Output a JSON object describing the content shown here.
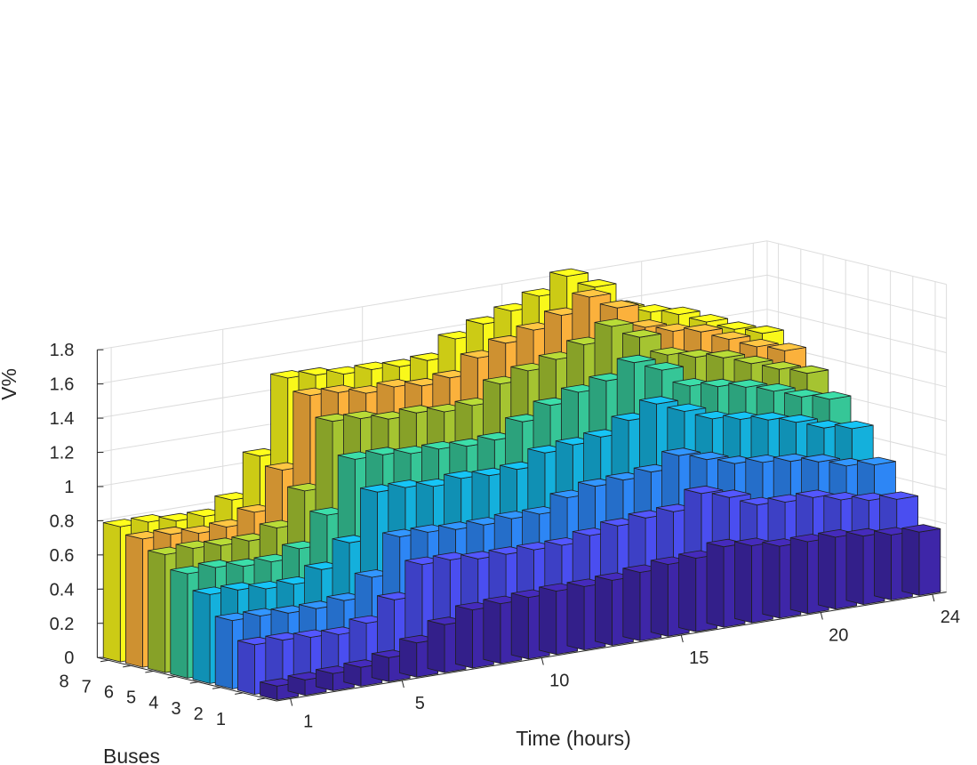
{
  "chart_data": {
    "type": "bar3",
    "title": "",
    "xlabel": "Time (hours)",
    "ylabel": "Buses",
    "zlabel": "V%",
    "zlim": [
      0,
      1.8
    ],
    "z_ticks": [
      "0",
      "0.2",
      "0.4",
      "0.6",
      "0.8",
      "1",
      "1.2",
      "1.4",
      "1.6",
      "1.8"
    ],
    "x_ticks": [
      "1",
      "5",
      "10",
      "15",
      "20",
      "24"
    ],
    "y_ticks": [
      "1",
      "2",
      "3",
      "4",
      "5",
      "6",
      "7",
      "8"
    ],
    "grid": true,
    "categories": [
      1,
      2,
      3,
      4,
      5,
      6,
      7,
      8,
      9,
      10,
      11,
      12,
      13,
      14,
      15,
      16,
      17,
      18,
      19,
      20,
      21,
      22,
      23,
      24
    ],
    "series": [
      {
        "name": "Bus 1",
        "color": "#3e26a8",
        "values": [
          0.08,
          0.09,
          0.1,
          0.11,
          0.14,
          0.2,
          0.28,
          0.34,
          0.35,
          0.36,
          0.37,
          0.37,
          0.38,
          0.4,
          0.42,
          0.43,
          0.47,
          0.45,
          0.42,
          0.42,
          0.42,
          0.4,
          0.38,
          0.37
        ]
      },
      {
        "name": "Bus 2",
        "color": "#4a4ef0",
        "values": [
          0.29,
          0.29,
          0.28,
          0.27,
          0.31,
          0.42,
          0.6,
          0.6,
          0.58,
          0.58,
          0.58,
          0.58,
          0.61,
          0.64,
          0.66,
          0.67,
          0.75,
          0.7,
          0.63,
          0.62,
          0.62,
          0.58,
          0.55,
          0.53
        ]
      },
      {
        "name": "Bus 3",
        "color": "#2d86f5",
        "values": [
          0.4,
          0.4,
          0.39,
          0.39,
          0.41,
          0.52,
          0.73,
          0.73,
          0.72,
          0.72,
          0.73,
          0.73,
          0.8,
          0.84,
          0.85,
          0.87,
          0.94,
          0.89,
          0.84,
          0.82,
          0.8,
          0.77,
          0.72,
          0.7
        ]
      },
      {
        "name": "Bus 4",
        "color": "#14b0dc",
        "values": [
          0.52,
          0.52,
          0.5,
          0.5,
          0.56,
          0.69,
          0.96,
          0.96,
          0.94,
          0.96,
          0.95,
          0.96,
          1.03,
          1.05,
          1.07,
          1.14,
          1.21,
          1.14,
          1.07,
          1.04,
          1.01,
          0.97,
          0.91,
          0.88
        ]
      },
      {
        "name": "Bus 5",
        "color": "#36c697",
        "values": [
          0.61,
          0.62,
          0.6,
          0.6,
          0.65,
          0.82,
          1.12,
          1.12,
          1.1,
          1.1,
          1.09,
          1.1,
          1.18,
          1.25,
          1.3,
          1.34,
          1.42,
          1.35,
          1.23,
          1.2,
          1.17,
          1.12,
          1.06,
          1.02
        ]
      },
      {
        "name": "Bus 6",
        "color": "#a5c431",
        "values": [
          0.69,
          0.7,
          0.69,
          0.69,
          0.74,
          0.93,
          1.31,
          1.3,
          1.27,
          1.28,
          1.26,
          1.27,
          1.37,
          1.42,
          1.46,
          1.52,
          1.6,
          1.51,
          1.38,
          1.34,
          1.31,
          1.25,
          1.19,
          1.14
        ]
      },
      {
        "name": "Bus 7",
        "color": "#fbb13c",
        "values": [
          0.75,
          0.75,
          0.73,
          0.74,
          0.8,
          1.02,
          1.43,
          1.42,
          1.39,
          1.4,
          1.38,
          1.4,
          1.49,
          1.55,
          1.6,
          1.66,
          1.74,
          1.65,
          1.51,
          1.46,
          1.43,
          1.36,
          1.29,
          1.24
        ]
      },
      {
        "name": "Bus 8",
        "color": "#f9f81a",
        "values": [
          0.79,
          0.79,
          0.77,
          0.77,
          0.84,
          1.07,
          1.5,
          1.49,
          1.47,
          1.47,
          1.46,
          1.47,
          1.57,
          1.63,
          1.68,
          1.74,
          1.83,
          1.74,
          1.59,
          1.54,
          1.5,
          1.43,
          1.36,
          1.31
        ]
      }
    ]
  }
}
